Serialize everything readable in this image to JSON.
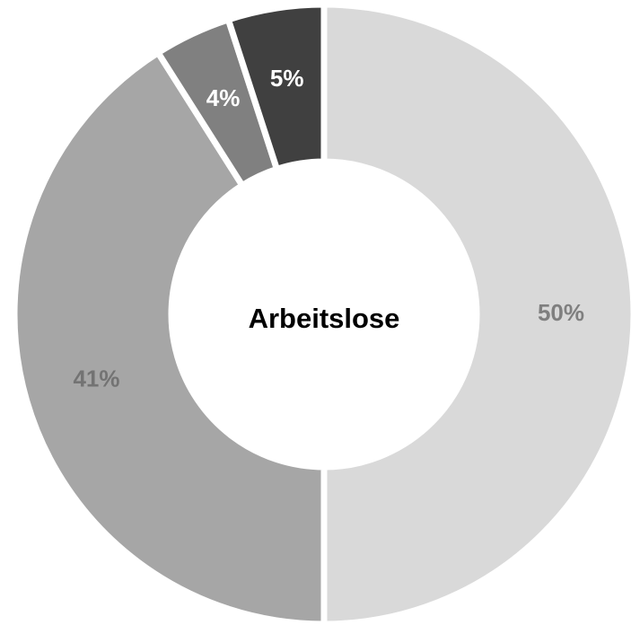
{
  "chart_data": {
    "type": "donut",
    "title": "Arbeitslose",
    "categories": [
      null,
      null,
      null,
      null
    ],
    "values": [
      50,
      41,
      4,
      5
    ],
    "value_labels": [
      "50%",
      "41%",
      "4%",
      "5%"
    ],
    "colors": [
      "#d9d9d9",
      "#a6a6a6",
      "#808080",
      "#404040"
    ],
    "label_colors": [
      "#7f7f7f",
      "#737373",
      "#ffffff",
      "#ffffff"
    ]
  }
}
